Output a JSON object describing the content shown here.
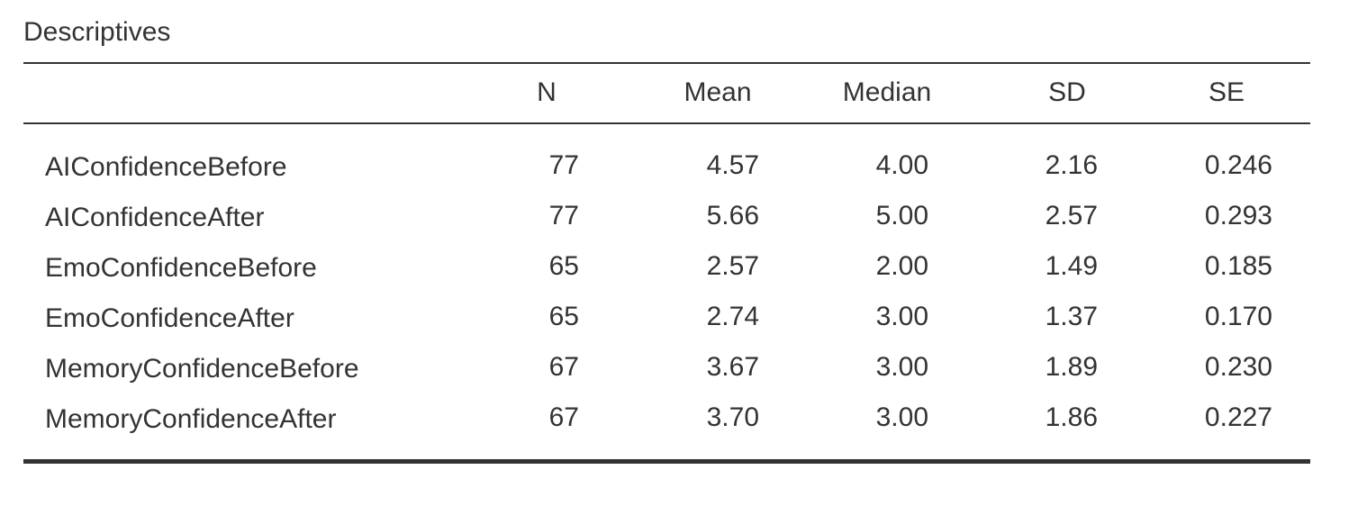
{
  "title": "Descriptives",
  "table": {
    "columns": [
      "",
      "N",
      "Mean",
      "Median",
      "SD",
      "SE"
    ],
    "rows": [
      [
        "AIConfidenceBefore",
        "77",
        "4.57",
        "4.00",
        "2.16",
        "0.246"
      ],
      [
        "AIConfidenceAfter",
        "77",
        "5.66",
        "5.00",
        "2.57",
        "0.293"
      ],
      [
        "EmoConfidenceBefore",
        "65",
        "2.57",
        "2.00",
        "1.49",
        "0.185"
      ],
      [
        "EmoConfidenceAfter",
        "65",
        "2.74",
        "3.00",
        "1.37",
        "0.170"
      ],
      [
        "MemoryConfidenceBefore",
        "67",
        "3.67",
        "3.00",
        "1.89",
        "0.230"
      ],
      [
        "MemoryConfidenceAfter",
        "67",
        "3.70",
        "3.00",
        "1.86",
        "0.227"
      ]
    ]
  }
}
